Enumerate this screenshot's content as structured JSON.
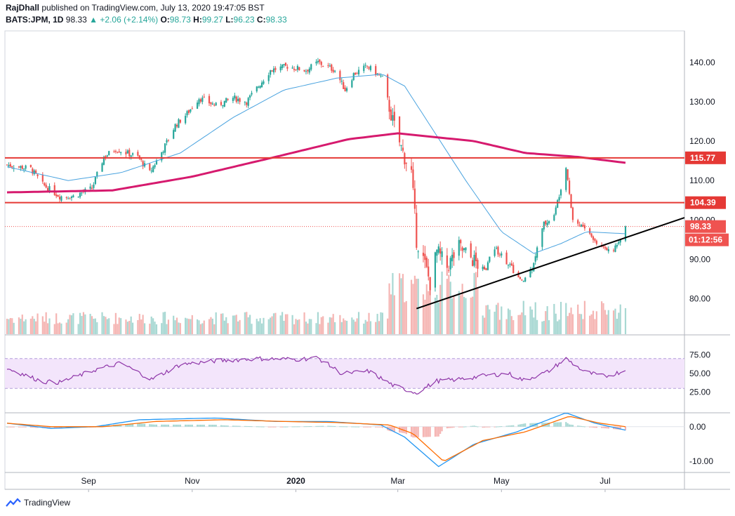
{
  "header": {
    "author": "RajDhall",
    "published_text": "published on TradingView.com, July 13, 2020 19:47:05 BST",
    "symbol": "BATS:JPM, 1D",
    "last": "98.33",
    "change": "▲ +2.06 (+2.14%)",
    "o_label": "O:",
    "o": "98.73",
    "h_label": "H:",
    "h": "99.27",
    "l_label": "L:",
    "l": "96.23",
    "c_label": "C:",
    "c": "98.33"
  },
  "footer": {
    "brand": "TradingView"
  },
  "colors": {
    "up": "#26a69a",
    "down": "#ef5350",
    "vol_up": "#a8d8d3",
    "vol_down": "#f5b5b3",
    "ma_short": "#4aa3df",
    "ma_long": "#d61a6e",
    "level": "#e53935",
    "trend": "#000000",
    "rsi": "#8e35a8",
    "rsi_band": "#f3e5fb",
    "macd": "#2196f3",
    "signal": "#ff6d00"
  },
  "chart_data": {
    "type": "candlestick",
    "main_axis": {
      "ticks": [
        "140.00",
        "130.00",
        "120.00",
        "110.00",
        "100.00",
        "90.00",
        "80.00"
      ],
      "ylim": [
        71,
        148
      ]
    },
    "time_axis": [
      "Sep",
      "Nov",
      "2020",
      "Mar",
      "May",
      "Jul"
    ],
    "horizontal_levels": [
      {
        "value": 115.77,
        "label": "115.77"
      },
      {
        "value": 104.39,
        "label": "104.39"
      }
    ],
    "last_price": {
      "value": 98.33,
      "label": "98.33"
    },
    "countdown": "01:12:56",
    "trendline": {
      "from": [
        "2020-03-12",
        77.5
      ],
      "to": [
        "2020-07-13",
        95.5
      ]
    },
    "price_path": [
      [
        "2019-07-15",
        114
      ],
      [
        "2019-07-29",
        113
      ],
      [
        "2019-08-05",
        109
      ],
      [
        "2019-08-15",
        106
      ],
      [
        "2019-08-23",
        106
      ],
      [
        "2019-09-03",
        108
      ],
      [
        "2019-09-10",
        116
      ],
      [
        "2019-09-17",
        118
      ],
      [
        "2019-09-30",
        116
      ],
      [
        "2019-10-07",
        112
      ],
      [
        "2019-10-15",
        118
      ],
      [
        "2019-10-22",
        124
      ],
      [
        "2019-10-29",
        127
      ],
      [
        "2019-11-05",
        131
      ],
      [
        "2019-11-15",
        129
      ],
      [
        "2019-11-25",
        131
      ],
      [
        "2019-12-03",
        130
      ],
      [
        "2019-12-10",
        134
      ],
      [
        "2019-12-17",
        138
      ],
      [
        "2019-12-27",
        139
      ],
      [
        "2020-01-07",
        138
      ],
      [
        "2020-01-14",
        140
      ],
      [
        "2020-01-24",
        138
      ],
      [
        "2020-01-30",
        133
      ],
      [
        "2020-02-04",
        137
      ],
      [
        "2020-02-12",
        139
      ],
      [
        "2020-02-21",
        136
      ],
      [
        "2020-02-27",
        125
      ],
      [
        "2020-03-04",
        117
      ],
      [
        "2020-03-09",
        112
      ],
      [
        "2020-03-12",
        95
      ],
      [
        "2020-03-16",
        90
      ],
      [
        "2020-03-20",
        84
      ],
      [
        "2020-03-24",
        92
      ],
      [
        "2020-03-30",
        88
      ],
      [
        "2020-04-06",
        93
      ],
      [
        "2020-04-14",
        90
      ],
      [
        "2020-04-21",
        87
      ],
      [
        "2020-04-27",
        93
      ],
      [
        "2020-05-05",
        89
      ],
      [
        "2020-05-13",
        84
      ],
      [
        "2020-05-19",
        88
      ],
      [
        "2020-05-26",
        99
      ],
      [
        "2020-06-01",
        101
      ],
      [
        "2020-06-08",
        114
      ],
      [
        "2020-06-12",
        100
      ],
      [
        "2020-06-19",
        98
      ],
      [
        "2020-06-26",
        94
      ],
      [
        "2020-07-02",
        93
      ],
      [
        "2020-07-08",
        93
      ],
      [
        "2020-07-13",
        98.33
      ]
    ],
    "ma_short_path": [
      [
        "2019-07-15",
        113.5
      ],
      [
        "2019-08-20",
        110
      ],
      [
        "2019-09-20",
        112
      ],
      [
        "2019-10-25",
        117
      ],
      [
        "2019-11-25",
        126
      ],
      [
        "2019-12-25",
        133
      ],
      [
        "2020-01-25",
        136
      ],
      [
        "2020-02-21",
        137
      ],
      [
        "2020-03-05",
        134
      ],
      [
        "2020-03-20",
        124
      ],
      [
        "2020-04-10",
        110
      ],
      [
        "2020-05-01",
        97
      ],
      [
        "2020-05-20",
        91.5
      ],
      [
        "2020-06-05",
        94
      ],
      [
        "2020-06-20",
        97
      ],
      [
        "2020-07-13",
        96.5
      ]
    ],
    "ma_long_path": [
      [
        "2019-07-15",
        107
      ],
      [
        "2019-09-15",
        107.5
      ],
      [
        "2019-11-01",
        111
      ],
      [
        "2019-12-20",
        116
      ],
      [
        "2020-02-01",
        120.5
      ],
      [
        "2020-03-01",
        122
      ],
      [
        "2020-04-15",
        120
      ],
      [
        "2020-05-15",
        117
      ],
      [
        "2020-06-15",
        116
      ],
      [
        "2020-07-13",
        114.5
      ]
    ],
    "rsi": {
      "ticks": [
        "75.00",
        "50.00",
        "25.00"
      ],
      "band": [
        30,
        70
      ],
      "path": [
        [
          "2019-07-15",
          57
        ],
        [
          "2019-08-05",
          39
        ],
        [
          "2019-08-15",
          38
        ],
        [
          "2019-09-05",
          55
        ],
        [
          "2019-09-20",
          64
        ],
        [
          "2019-10-08",
          42
        ],
        [
          "2019-10-25",
          62
        ],
        [
          "2019-11-15",
          67
        ],
        [
          "2019-12-10",
          70
        ],
        [
          "2020-01-02",
          69
        ],
        [
          "2020-01-14",
          71
        ],
        [
          "2020-01-28",
          50
        ],
        [
          "2020-02-13",
          53
        ],
        [
          "2020-02-28",
          33
        ],
        [
          "2020-03-12",
          24
        ],
        [
          "2020-03-24",
          40
        ],
        [
          "2020-04-06",
          42
        ],
        [
          "2020-04-21",
          47
        ],
        [
          "2020-05-05",
          50
        ],
        [
          "2020-05-14",
          41
        ],
        [
          "2020-05-28",
          52
        ],
        [
          "2020-06-08",
          70
        ],
        [
          "2020-06-19",
          52
        ],
        [
          "2020-07-01",
          46
        ],
        [
          "2020-07-13",
          54
        ]
      ]
    },
    "macd": {
      "ticks": [
        "0.00",
        "-10.00"
      ],
      "ylim": [
        -13,
        4
      ],
      "macd_path": [
        [
          "2019-07-15",
          1
        ],
        [
          "2019-08-10",
          -0.5
        ],
        [
          "2019-09-05",
          0
        ],
        [
          "2019-10-01",
          2
        ],
        [
          "2019-11-15",
          2.5
        ],
        [
          "2019-12-20",
          1.5
        ],
        [
          "2020-01-20",
          1.5
        ],
        [
          "2020-02-20",
          0.5
        ],
        [
          "2020-03-05",
          -3
        ],
        [
          "2020-03-25",
          -11.5
        ],
        [
          "2020-04-15",
          -5
        ],
        [
          "2020-05-10",
          -1.5
        ],
        [
          "2020-06-08",
          4
        ],
        [
          "2020-06-25",
          1
        ],
        [
          "2020-07-13",
          -1
        ]
      ],
      "signal_path": [
        [
          "2019-07-15",
          1
        ],
        [
          "2019-08-10",
          0
        ],
        [
          "2019-09-10",
          0
        ],
        [
          "2019-10-10",
          1.5
        ],
        [
          "2019-11-20",
          2
        ],
        [
          "2019-12-25",
          1.5
        ],
        [
          "2020-01-25",
          1.2
        ],
        [
          "2020-02-25",
          0.5
        ],
        [
          "2020-03-10",
          -2
        ],
        [
          "2020-03-28",
          -10
        ],
        [
          "2020-04-20",
          -4
        ],
        [
          "2020-05-15",
          -1.5
        ],
        [
          "2020-06-10",
          3
        ],
        [
          "2020-06-28",
          1
        ],
        [
          "2020-07-13",
          0
        ]
      ]
    }
  }
}
